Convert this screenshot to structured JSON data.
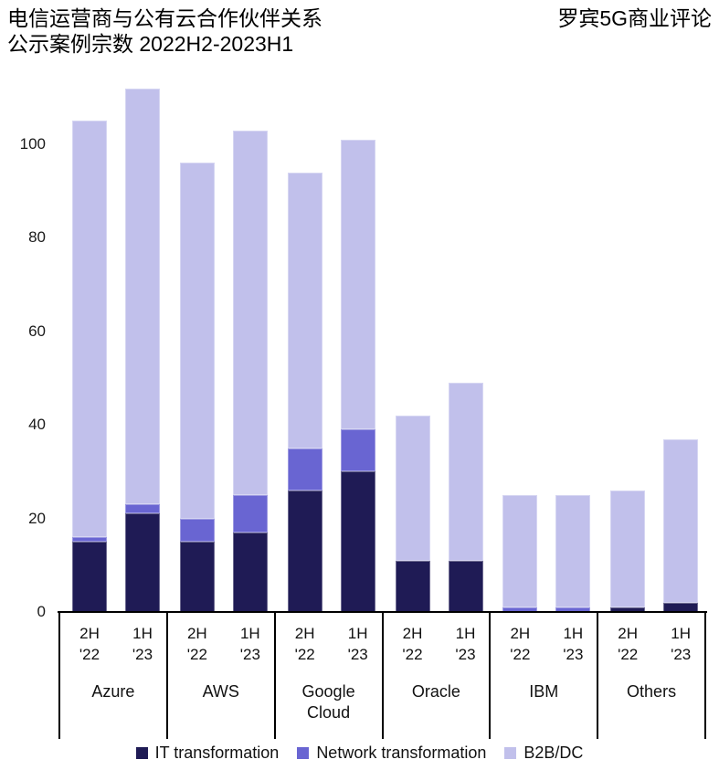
{
  "header": {
    "title_line1": "电信运营商与公有云合作伙伴关系",
    "title_line2": "公示案例宗数 2022H2-2023H1",
    "source_label": "罗宾5G商业评论"
  },
  "colors": {
    "it_transformation": "#1F1B55",
    "network_transformation": "#6965D2",
    "b2b_dc": "#C1C0EB",
    "axis": "#000000",
    "background": "#FFFFFF"
  },
  "chart_data": {
    "type": "bar",
    "stacked": true,
    "title": "电信运营商与公有云合作伙伴关系 公示案例宗数 2022H2-2023H1",
    "xlabel": "",
    "ylabel": "",
    "grid": false,
    "legend_position": "bottom",
    "y_ticks": [
      0,
      20,
      40,
      60,
      80,
      100
    ],
    "ylim": [
      0,
      113
    ],
    "groups": [
      "Azure",
      "AWS",
      "Google Cloud",
      "Oracle",
      "IBM",
      "Others"
    ],
    "periods": [
      {
        "line1": "2H",
        "line2": "'22"
      },
      {
        "line1": "1H",
        "line2": "'23"
      }
    ],
    "categories": [
      "Azure 2H '22",
      "Azure 1H '23",
      "AWS 2H '22",
      "AWS 1H '23",
      "Google Cloud 2H '22",
      "Google Cloud 1H '23",
      "Oracle 2H '22",
      "Oracle 1H '23",
      "IBM 2H '22",
      "IBM 1H '23",
      "Others 2H '22",
      "Others 1H '23"
    ],
    "series": [
      {
        "name": "IT transformation",
        "color": "#1F1B55",
        "values": [
          15,
          21,
          15,
          17,
          26,
          30,
          11,
          11,
          0,
          0,
          1,
          2
        ]
      },
      {
        "name": "Network transformation",
        "color": "#6965D2",
        "values": [
          1,
          2,
          5,
          8,
          9,
          9,
          0,
          0,
          1,
          1,
          0,
          0
        ]
      },
      {
        "name": "B2B/DC",
        "color": "#C1C0EB",
        "values": [
          89,
          89,
          76,
          78,
          59,
          62,
          31,
          38,
          24,
          24,
          25,
          35
        ]
      }
    ],
    "totals": [
      105,
      112,
      96,
      103,
      94,
      101,
      42,
      49,
      25,
      25,
      26,
      37
    ]
  }
}
